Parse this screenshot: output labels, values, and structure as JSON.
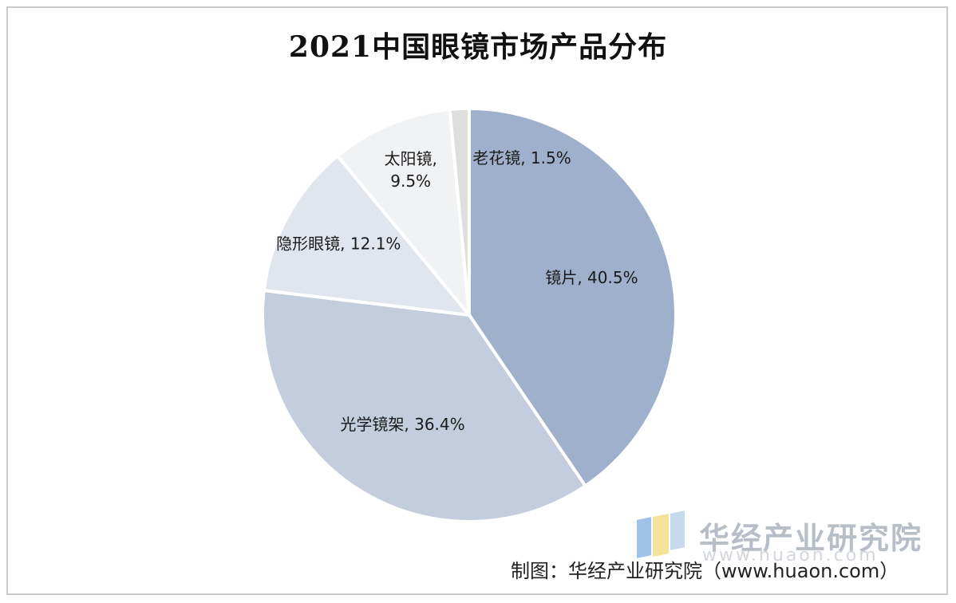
{
  "title": "2021中国眼镜市场产品分布",
  "source": "制图：华经产业研究院（www.huaon.com）",
  "watermark": {
    "brand": "华经产业研究院",
    "url": "www.huaon.com"
  },
  "chart_data": {
    "type": "pie",
    "title": "2021中国眼镜市场产品分布",
    "unit": "%",
    "slices": [
      {
        "label": "镜片",
        "value": 40.5,
        "text": "镜片, 40.5%",
        "color": "#9eb0cb"
      },
      {
        "label": "光学镜架",
        "value": 36.4,
        "text": "光学镜架, 36.4%",
        "color": "#c3cddd"
      },
      {
        "label": "隐形眼镜",
        "value": 12.1,
        "text": "隐形眼镜, 12.1%",
        "color": "#e1e6ee"
      },
      {
        "label": "太阳镜",
        "value": 9.5,
        "text_lines": [
          "太阳镜,",
          "9.5%"
        ],
        "color": "#f1f2f4"
      },
      {
        "label": "老花镜",
        "value": 1.5,
        "text": "老花镜, 1.5%",
        "color": "#dedede"
      }
    ]
  }
}
